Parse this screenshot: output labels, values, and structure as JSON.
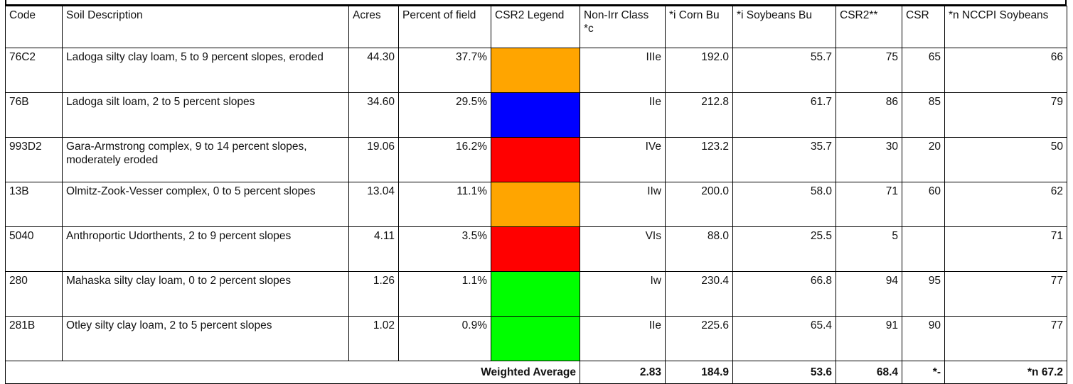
{
  "table": {
    "header": [
      "Code",
      "Soil Description",
      "Acres",
      "Percent of field",
      "CSR2 Legend",
      "Non-Irr Class *c",
      "*i Corn Bu",
      "*i Soybeans Bu",
      "CSR2**",
      "CSR",
      "*n NCCPI Soybeans"
    ],
    "rows": [
      {
        "code": "76C2",
        "description": "Ladoga silty clay loam, 5 to 9 percent slopes, eroded",
        "acres": "44.30",
        "percent": "37.7%",
        "legend_color": "#ffa500",
        "class": "IIIe",
        "corn": "192.0",
        "soybeans": "55.7",
        "csr2": "75",
        "csr": "65",
        "nccpi": "66"
      },
      {
        "code": "76B",
        "description": "Ladoga silt loam, 2 to 5 percent slopes",
        "acres": "34.60",
        "percent": "29.5%",
        "legend_color": "#0000ff",
        "class": "IIe",
        "corn": "212.8",
        "soybeans": "61.7",
        "csr2": "86",
        "csr": "85",
        "nccpi": "79"
      },
      {
        "code": "993D2",
        "description": "Gara-Armstrong complex, 9 to 14 percent slopes, moderately eroded",
        "acres": "19.06",
        "percent": "16.2%",
        "legend_color": "#ff0000",
        "class": "IVe",
        "corn": "123.2",
        "soybeans": "35.7",
        "csr2": "30",
        "csr": "20",
        "nccpi": "50"
      },
      {
        "code": "13B",
        "description": "Olmitz-Zook-Vesser complex, 0 to 5 percent slopes",
        "acres": "13.04",
        "percent": "11.1%",
        "legend_color": "#ffa500",
        "class": "IIw",
        "corn": "200.0",
        "soybeans": "58.0",
        "csr2": "71",
        "csr": "60",
        "nccpi": "62"
      },
      {
        "code": "5040",
        "description": "Anthroportic Udorthents, 2 to 9 percent slopes",
        "acres": "4.11",
        "percent": "3.5%",
        "legend_color": "#ff0000",
        "class": "VIs",
        "corn": "88.0",
        "soybeans": "25.5",
        "csr2": "5",
        "csr": null,
        "nccpi": "71"
      },
      {
        "code": "280",
        "description": "Mahaska silty clay loam, 0 to 2 percent slopes",
        "acres": "1.26",
        "percent": "1.1%",
        "legend_color": "#00ff00",
        "class": "Iw",
        "corn": "230.4",
        "soybeans": "66.8",
        "csr2": "94",
        "csr": "95",
        "nccpi": "77"
      },
      {
        "code": "281B",
        "description": "Otley silty clay loam, 2 to 5 percent slopes",
        "acres": "1.02",
        "percent": "0.9%",
        "legend_color": "#00ff00",
        "class": "IIe",
        "corn": "225.6",
        "soybeans": "65.4",
        "csr2": "91",
        "csr": "90",
        "nccpi": "77"
      }
    ],
    "total": {
      "label": "Weighted Average",
      "class": "2.83",
      "corn": "184.9",
      "soybeans": "53.6",
      "csr2": "68.4",
      "csr": "*-",
      "nccpi": "*n 67.2"
    }
  }
}
